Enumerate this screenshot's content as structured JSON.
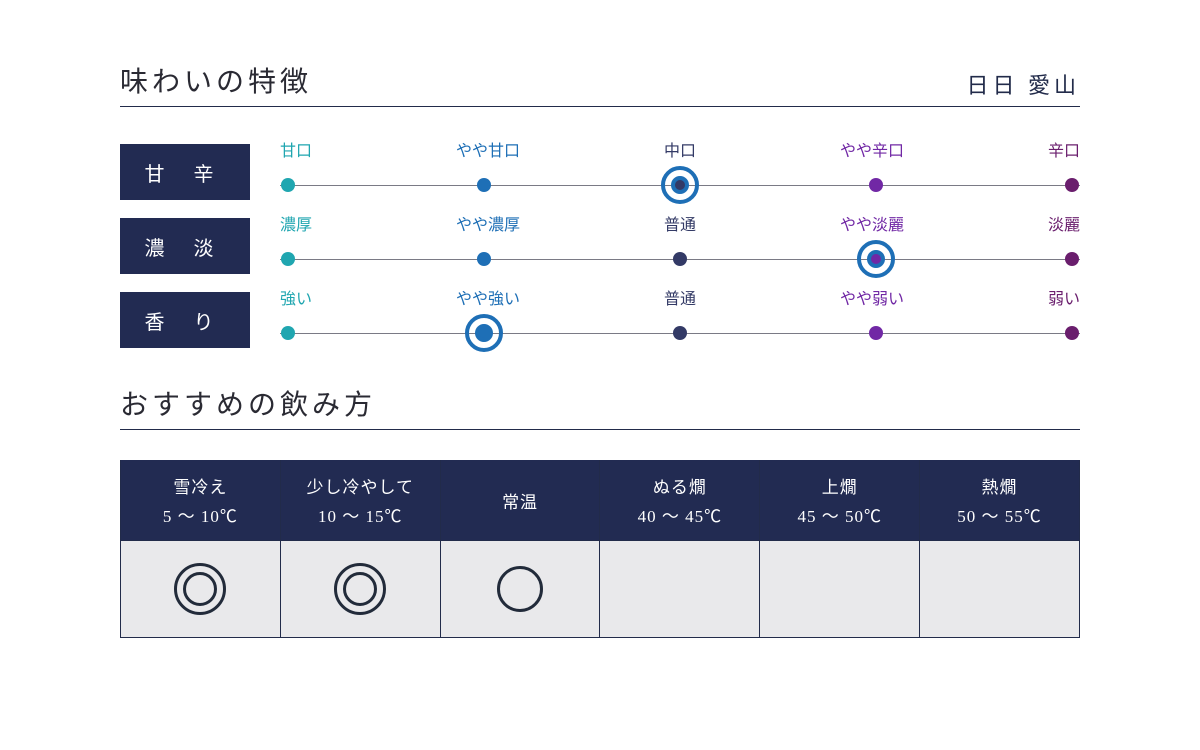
{
  "colors": {
    "navy": "#222b52",
    "accent_ring": "#1e6fb6",
    "dot_colors": [
      "#20a6b0",
      "#1e6fb6",
      "#333a66",
      "#7128a5",
      "#6a1e6d"
    ],
    "label_colors": [
      "#20a6b0",
      "#1e6fb6",
      "#333a66",
      "#7128a5",
      "#6a1e6d"
    ]
  },
  "header": {
    "section_title": "味わいの特徴",
    "product_name": "日日 愛山"
  },
  "scales": [
    {
      "name": "甘 辛",
      "labels": [
        "甘口",
        "やや甘口",
        "中口",
        "やや辛口",
        "辛口"
      ],
      "selected_index": 2
    },
    {
      "name": "濃 淡",
      "labels": [
        "濃厚",
        "やや濃厚",
        "普通",
        "やや淡麗",
        "淡麗"
      ],
      "selected_index": 3
    },
    {
      "name": "香 り",
      "labels": [
        "強い",
        "やや強い",
        "普通",
        "やや弱い",
        "弱い"
      ],
      "selected_index": 1
    }
  ],
  "positions_pct": [
    1,
    25.5,
    50,
    74.5,
    99
  ],
  "serving": {
    "title": "おすすめの飲み方",
    "temps": [
      {
        "name": "雪冷え",
        "range": "5 〜 10℃",
        "mark": "double"
      },
      {
        "name": "少し冷やして",
        "range": "10 〜 15℃",
        "mark": "double"
      },
      {
        "name": "常温",
        "range": "",
        "mark": "single"
      },
      {
        "name": "ぬる燗",
        "range": "40 〜 45℃",
        "mark": ""
      },
      {
        "name": "上燗",
        "range": "45 〜 50℃",
        "mark": ""
      },
      {
        "name": "熱燗",
        "range": "50 〜 55℃",
        "mark": ""
      }
    ]
  }
}
